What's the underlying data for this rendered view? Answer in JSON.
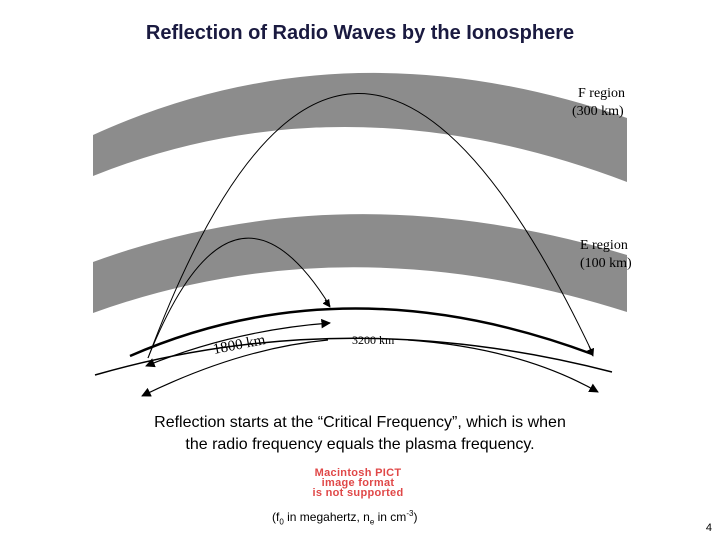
{
  "slide": {
    "title": "Reflection of Radio Waves by the Ionosphere",
    "page_number": "4"
  },
  "diagram": {
    "f_region_label_line1": "F region",
    "f_region_label_line2": "(300 km)",
    "e_region_label_line1": "E region",
    "e_region_label_line2": "(100 km)",
    "short_distance_label": "1800 km",
    "long_distance_label": "3200 km",
    "layer_color": "#8c8c8c"
  },
  "caption": {
    "line1": "Reflection starts at the “Critical Frequency”, which is when",
    "line2": "the radio frequency equals the plasma frequency."
  },
  "missing_image": {
    "line1": "Macintosh PICT",
    "line2": "image format",
    "line3": "is not supported"
  },
  "note": {
    "open_paren": "(f",
    "f_sub": "0",
    "mid": " in megahertz, n",
    "n_sub": "e",
    "in_text": " in cm",
    "exponent": "-3",
    "close_paren": ")"
  }
}
